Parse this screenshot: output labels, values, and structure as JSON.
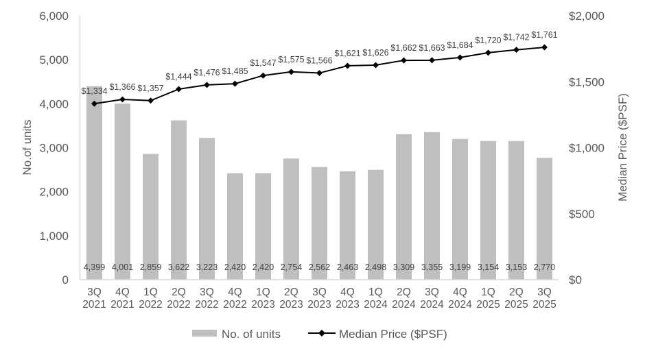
{
  "chart_data": {
    "type": "bar",
    "categories": [
      [
        "3Q",
        "2021"
      ],
      [
        "4Q",
        "2021"
      ],
      [
        "1Q",
        "2022"
      ],
      [
        "2Q",
        "2022"
      ],
      [
        "3Q",
        "2022"
      ],
      [
        "4Q",
        "2022"
      ],
      [
        "1Q",
        "2023"
      ],
      [
        "2Q",
        "2023"
      ],
      [
        "3Q",
        "2023"
      ],
      [
        "4Q",
        "2023"
      ],
      [
        "1Q",
        "2024"
      ],
      [
        "2Q",
        "2024"
      ],
      [
        "3Q",
        "2024"
      ],
      [
        "4Q",
        "2024"
      ],
      [
        "1Q",
        "2025"
      ],
      [
        "2Q",
        "2025"
      ],
      [
        "3Q",
        "2025"
      ]
    ],
    "series": [
      {
        "name": "No. of units",
        "type": "bar",
        "axis": "left",
        "color": "#bfbfbf",
        "values": [
          4399,
          4001,
          2859,
          3622,
          3223,
          2420,
          2420,
          2754,
          2562,
          2463,
          2498,
          3309,
          3355,
          3199,
          3154,
          3153,
          2770
        ],
        "labels": [
          "4,399",
          "4,001",
          "2,859",
          "3,622",
          "3,223",
          "2,420",
          "2,420",
          "2,754",
          "2,562",
          "2,463",
          "2,498",
          "3,309",
          "3,355",
          "3,199",
          "3,154",
          "3,153",
          "2,770"
        ]
      },
      {
        "name": "Median Price ($PSF)",
        "type": "line",
        "axis": "right",
        "color": "#000000",
        "marker": "diamond",
        "values": [
          1334,
          1366,
          1357,
          1444,
          1476,
          1485,
          1547,
          1575,
          1566,
          1621,
          1626,
          1662,
          1663,
          1684,
          1720,
          1742,
          1761
        ],
        "labels": [
          "$1,334",
          "$1,366",
          "$1,357",
          "$1,444",
          "$1,476",
          "$1,485",
          "$1,547",
          "$1,575",
          "$1,566",
          "$1,621",
          "$1,626",
          "$1,662",
          "$1,663",
          "$1,684",
          "$1,720",
          "$1,742",
          "$1,761"
        ]
      }
    ],
    "ylabel": "No.of units",
    "y2label": "Median Price ($PSF)",
    "ylim": [
      0,
      6000
    ],
    "y2lim": [
      0,
      2000
    ],
    "yticks": [
      "0",
      "1,000",
      "2,000",
      "3,000",
      "4,000",
      "5,000",
      "6,000"
    ],
    "y2ticks": [
      "$0",
      "$500",
      "$1,000",
      "$1,500",
      "$2,000"
    ],
    "grid": false,
    "legend": "bottom",
    "legend_entries": [
      "No. of units",
      "Median Price ($PSF)"
    ]
  }
}
